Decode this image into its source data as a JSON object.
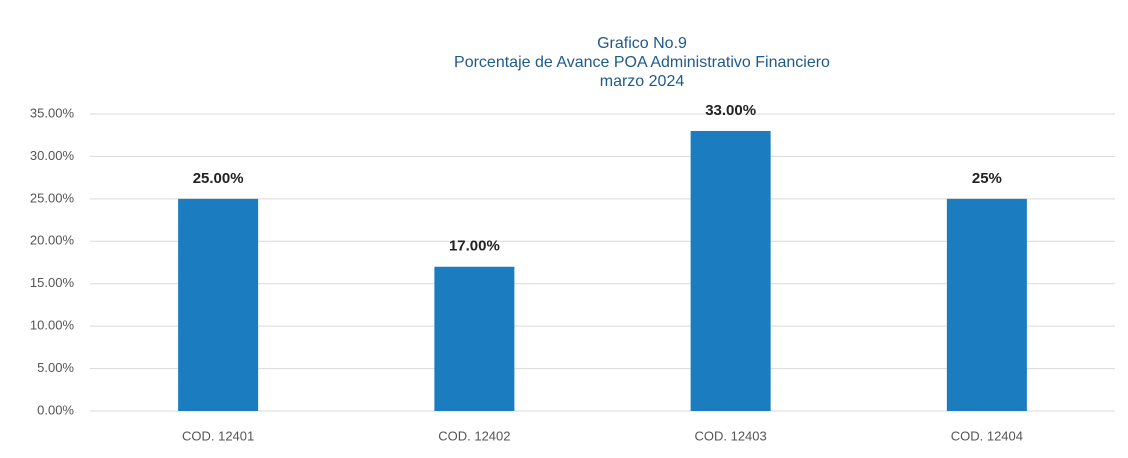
{
  "chart_data": {
    "type": "bar",
    "title": [
      "Grafico No.9",
      "Porcentaje de Avance POA Administrativo Financiero",
      "marzo 2024"
    ],
    "categories": [
      "COD. 12401",
      "COD. 12402",
      "COD. 12403",
      "COD. 12404"
    ],
    "values": [
      25,
      17,
      33,
      25
    ],
    "value_labels": [
      "25.00%",
      "17.00%",
      "33.00%",
      "25%"
    ],
    "color": "#1b7dc0",
    "ylim": [
      0,
      35
    ],
    "yticks": [
      {
        "value": 0,
        "label": "0.00%"
      },
      {
        "value": 5,
        "label": "5.00%"
      },
      {
        "value": 10,
        "label": "10.00%"
      },
      {
        "value": 15,
        "label": "15.00%"
      },
      {
        "value": 20,
        "label": "20.00%"
      },
      {
        "value": 25,
        "label": "25.00%"
      },
      {
        "value": 30,
        "label": "30.00%"
      },
      {
        "value": 35,
        "label": "35.00%"
      }
    ],
    "grid": true
  }
}
